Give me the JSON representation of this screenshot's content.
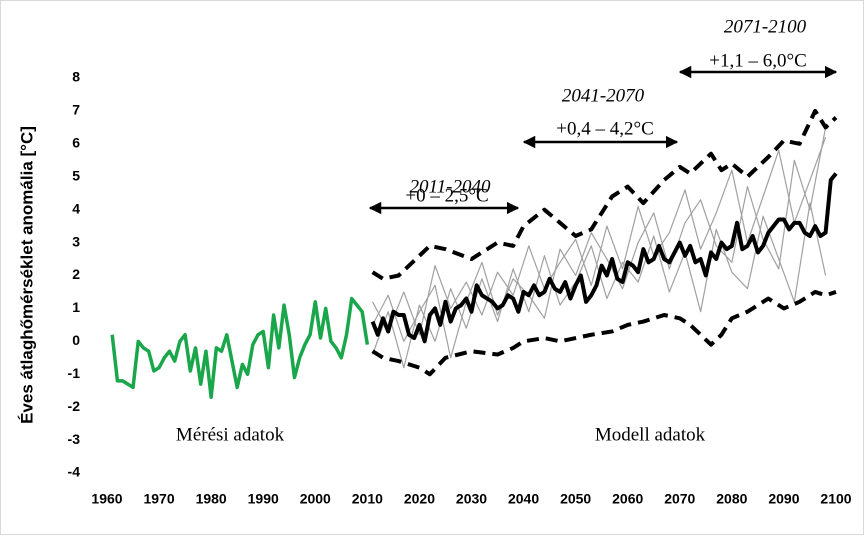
{
  "chart_data": {
    "type": "line",
    "ylabel": "Éves átlaghőmérséklet anomália [°C]",
    "xlim": [
      1960,
      2100
    ],
    "xticks": [
      1960,
      1970,
      1980,
      1990,
      2000,
      2010,
      2020,
      2030,
      2040,
      2050,
      2060,
      2070,
      2080,
      2090,
      2100
    ],
    "ylim": [
      -4,
      8
    ],
    "yticks": [
      -4,
      -3,
      -2,
      -1,
      0,
      1,
      2,
      3,
      4,
      5,
      6,
      7,
      8
    ],
    "grid": false,
    "annotations": [
      "2011-2040",
      "+0 – 2,5°C",
      "2041-2070",
      "+0,4 – 4,2°C",
      "2071-2100",
      "+1,1 – 6,0°C",
      "Mérési adatok",
      "Modell adatok"
    ],
    "series": [
      {
        "color": "#a0a0a0",
        "width": 1.2,
        "dash": false,
        "x": [
          2011,
          2014,
          2017,
          2020,
          2023,
          2026,
          2029,
          2032,
          2035,
          2038,
          2041,
          2044,
          2047,
          2050,
          2053,
          2056,
          2059,
          2062,
          2065,
          2068,
          2071,
          2074,
          2077,
          2080,
          2083,
          2086,
          2089,
          2092,
          2095,
          2098
        ],
        "values": [
          1.2,
          0.3,
          1.5,
          0.2,
          2.3,
          1.0,
          1.8,
          0.8,
          2.1,
          1.4,
          2.9,
          1.6,
          2.4,
          3.1,
          1.7,
          3.5,
          2.2,
          4.1,
          2.6,
          3.3,
          4.6,
          2.8,
          3.9,
          5.2,
          3.0,
          4.4,
          5.8,
          3.6,
          4.9,
          6.2
        ]
      },
      {
        "color": "#a0a0a0",
        "width": 1.2,
        "dash": false,
        "x": [
          2011,
          2014,
          2017,
          2020,
          2023,
          2026,
          2029,
          2032,
          2035,
          2038,
          2041,
          2044,
          2047,
          2050,
          2053,
          2056,
          2059,
          2062,
          2065,
          2068,
          2071,
          2074,
          2077,
          2080,
          2083,
          2086,
          2089,
          2092,
          2095,
          2098
        ],
        "values": [
          -0.4,
          0.9,
          -0.8,
          1.1,
          0.0,
          1.6,
          0.4,
          1.9,
          0.6,
          2.2,
          0.9,
          2.6,
          1.1,
          1.8,
          2.9,
          1.3,
          2.4,
          1.8,
          3.2,
          1.5,
          2.7,
          0.9,
          3.4,
          2.1,
          1.6,
          3.8,
          2.5,
          1.2,
          4.2,
          2.0
        ]
      },
      {
        "color": "#a0a0a0",
        "width": 1.2,
        "dash": false,
        "x": [
          2011,
          2014,
          2017,
          2020,
          2023,
          2026,
          2029,
          2032,
          2035,
          2038,
          2041,
          2044,
          2047,
          2050,
          2053,
          2056,
          2059,
          2062,
          2065,
          2068,
          2071,
          2074,
          2077,
          2080,
          2083,
          2086,
          2089,
          2092,
          2095,
          2098
        ],
        "values": [
          0.5,
          1.4,
          0.0,
          0.9,
          1.7,
          -0.5,
          1.2,
          2.4,
          0.8,
          1.9,
          1.4,
          0.7,
          2.8,
          2.0,
          3.3,
          2.5,
          1.6,
          3.0,
          3.9,
          2.2,
          3.6,
          4.3,
          2.9,
          2.4,
          4.7,
          3.1,
          2.2,
          5.5,
          4.0,
          6.5
        ]
      },
      {
        "color": "#1aa64a",
        "width": 3.5,
        "dash": false,
        "x": [
          1961,
          1962,
          1963,
          1964,
          1965,
          1966,
          1967,
          1968,
          1969,
          1970,
          1971,
          1972,
          1973,
          1974,
          1975,
          1976,
          1977,
          1978,
          1979,
          1980,
          1981,
          1982,
          1983,
          1984,
          1985,
          1986,
          1987,
          1988,
          1989,
          1990,
          1991,
          1992,
          1993,
          1994,
          1995,
          1996,
          1997,
          1998,
          1999,
          2000,
          2001,
          2002,
          2003,
          2004,
          2005,
          2006,
          2007,
          2008,
          2009,
          2010
        ],
        "values": [
          0.2,
          -1.2,
          -1.2,
          -1.3,
          -1.4,
          0.0,
          -0.2,
          -0.3,
          -0.9,
          -0.8,
          -0.5,
          -0.3,
          -0.6,
          0.0,
          0.2,
          -0.9,
          -0.2,
          -1.3,
          -0.3,
          -1.7,
          -0.2,
          -0.3,
          0.2,
          -0.6,
          -1.4,
          -0.7,
          -1.0,
          -0.1,
          0.2,
          0.3,
          -0.8,
          0.8,
          -0.2,
          1.1,
          0.2,
          -1.1,
          -0.5,
          -0.1,
          0.2,
          1.2,
          0.1,
          1.0,
          0.0,
          -0.2,
          -0.5,
          0.2,
          1.3,
          1.1,
          0.9,
          -0.1
        ]
      },
      {
        "color": "#000000",
        "width": 4,
        "dash": false,
        "x": [
          2011,
          2012,
          2013,
          2014,
          2015,
          2016,
          2017,
          2018,
          2019,
          2020,
          2021,
          2022,
          2023,
          2024,
          2025,
          2026,
          2027,
          2028,
          2029,
          2030,
          2031,
          2032,
          2033,
          2034,
          2035,
          2036,
          2037,
          2038,
          2039,
          2040,
          2041,
          2042,
          2043,
          2044,
          2045,
          2046,
          2047,
          2048,
          2049,
          2050,
          2051,
          2052,
          2053,
          2054,
          2055,
          2056,
          2057,
          2058,
          2059,
          2060,
          2061,
          2062,
          2063,
          2064,
          2065,
          2066,
          2067,
          2068,
          2069,
          2070,
          2071,
          2072,
          2073,
          2074,
          2075,
          2076,
          2077,
          2078,
          2079,
          2080,
          2081,
          2082,
          2083,
          2084,
          2085,
          2086,
          2087,
          2088,
          2089,
          2090,
          2091,
          2092,
          2093,
          2094,
          2095,
          2096,
          2097,
          2098,
          2099,
          2100
        ],
        "values": [
          0.6,
          0.2,
          0.7,
          0.3,
          0.9,
          0.8,
          0.8,
          0.2,
          0.1,
          0.5,
          0.0,
          0.8,
          1.0,
          0.5,
          1.2,
          0.6,
          1.0,
          1.1,
          1.3,
          0.9,
          1.7,
          1.4,
          1.3,
          1.2,
          1.0,
          1.1,
          1.4,
          1.3,
          0.9,
          1.5,
          1.4,
          1.7,
          1.4,
          1.5,
          1.9,
          1.6,
          1.5,
          1.8,
          1.3,
          1.7,
          2.0,
          1.2,
          1.4,
          1.7,
          2.3,
          2.0,
          2.5,
          1.9,
          1.8,
          2.4,
          2.3,
          2.1,
          2.8,
          2.4,
          2.5,
          2.9,
          2.5,
          2.4,
          2.7,
          3.0,
          2.6,
          2.9,
          2.4,
          2.5,
          2.0,
          2.7,
          2.5,
          3.0,
          2.8,
          2.9,
          3.6,
          2.8,
          2.9,
          3.2,
          2.7,
          2.9,
          3.3,
          3.5,
          3.7,
          3.7,
          3.4,
          3.6,
          3.6,
          3.3,
          3.2,
          3.5,
          3.2,
          3.3,
          4.9,
          5.1
        ]
      },
      {
        "color": "#000000",
        "width": 4,
        "dash": true,
        "x": [
          2011,
          2013,
          2016,
          2020,
          2022,
          2025,
          2030,
          2035,
          2038,
          2040,
          2044,
          2047,
          2050,
          2053,
          2057,
          2060,
          2063,
          2067,
          2070,
          2072,
          2076,
          2078,
          2080,
          2083,
          2087,
          2090,
          2093,
          2096,
          2098,
          2100
        ],
        "values": [
          2.1,
          1.9,
          2.0,
          2.6,
          2.9,
          2.8,
          2.5,
          3.0,
          2.9,
          3.5,
          4.0,
          3.6,
          3.2,
          3.4,
          4.4,
          4.7,
          4.2,
          4.9,
          5.3,
          5.1,
          5.7,
          5.2,
          5.4,
          5.0,
          5.6,
          6.1,
          6.0,
          7.0,
          6.5,
          6.8
        ]
      },
      {
        "color": "#000000",
        "width": 4,
        "dash": true,
        "x": [
          2011,
          2013,
          2016,
          2020,
          2022,
          2025,
          2030,
          2035,
          2038,
          2040,
          2044,
          2047,
          2050,
          2053,
          2057,
          2060,
          2063,
          2067,
          2070,
          2072,
          2076,
          2078,
          2080,
          2083,
          2087,
          2090,
          2093,
          2096,
          2098,
          2100
        ],
        "values": [
          -0.3,
          -0.5,
          -0.6,
          -0.8,
          -1.0,
          -0.5,
          -0.3,
          -0.4,
          -0.2,
          0.0,
          0.1,
          0.0,
          0.1,
          0.2,
          0.3,
          0.5,
          0.6,
          0.8,
          0.7,
          0.5,
          -0.1,
          0.2,
          0.7,
          0.9,
          1.3,
          1.0,
          1.2,
          1.5,
          1.4,
          1.5
        ]
      }
    ]
  }
}
